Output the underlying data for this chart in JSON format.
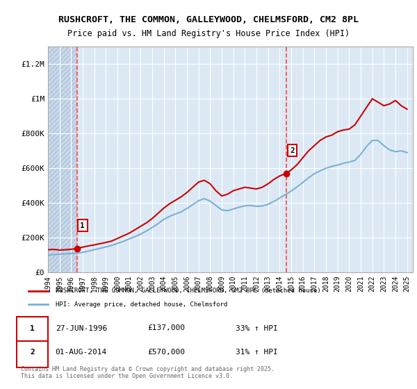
{
  "title_line1": "RUSHCROFT, THE COMMON, GALLEYWOOD, CHELMSFORD, CM2 8PL",
  "title_line2": "Price paid vs. HM Land Registry's House Price Index (HPI)",
  "bg_color": "#dce9f5",
  "plot_bg_color": "#dce9f5",
  "hatch_color": "#c0d0e8",
  "grid_color": "#ffffff",
  "red_line_color": "#cc0000",
  "blue_line_color": "#7ab0d4",
  "dashed_red_color": "#ff4444",
  "x_start": 1994.0,
  "x_end": 2025.5,
  "y_min": 0,
  "y_max": 1300000,
  "yticks": [
    0,
    200000,
    400000,
    600000,
    800000,
    1000000,
    1200000
  ],
  "ytick_labels": [
    "£0",
    "£200K",
    "£400K",
    "£600K",
    "£800K",
    "£1M",
    "£1.2M"
  ],
  "xticks": [
    1994,
    1995,
    1996,
    1997,
    1998,
    1999,
    2000,
    2001,
    2002,
    2003,
    2004,
    2005,
    2006,
    2007,
    2008,
    2009,
    2010,
    2011,
    2012,
    2013,
    2014,
    2015,
    2016,
    2017,
    2018,
    2019,
    2020,
    2021,
    2022,
    2023,
    2024,
    2025
  ],
  "sale1_x": 1996.49,
  "sale1_y": 137000,
  "sale2_x": 2014.58,
  "sale2_y": 570000,
  "vline1_x": 1996.49,
  "vline2_x": 2014.58,
  "legend_label_red": "RUSHCROFT, THE COMMON, GALLEYWOOD, CHELMSFORD, CM2 8PL (detached house)",
  "legend_label_blue": "HPI: Average price, detached house, Chelmsford",
  "annotation1_label": "1",
  "annotation2_label": "2",
  "note1_num": "1",
  "note1_date": "27-JUN-1996",
  "note1_price": "£137,000",
  "note1_hpi": "33% ↑ HPI",
  "note2_num": "2",
  "note2_date": "01-AUG-2014",
  "note2_price": "£570,000",
  "note2_hpi": "31% ↑ HPI",
  "copyright": "Contains HM Land Registry data © Crown copyright and database right 2025.\nThis data is licensed under the Open Government Licence v3.0.",
  "red_line_x": [
    1994.0,
    1994.5,
    1995.0,
    1995.5,
    1996.0,
    1996.49,
    1996.5,
    1997.0,
    1997.5,
    1998.0,
    1998.5,
    1999.0,
    1999.5,
    2000.0,
    2000.5,
    2001.0,
    2001.5,
    2002.0,
    2002.5,
    2003.0,
    2003.5,
    2004.0,
    2004.5,
    2005.0,
    2005.5,
    2006.0,
    2006.5,
    2007.0,
    2007.5,
    2008.0,
    2008.5,
    2009.0,
    2009.5,
    2010.0,
    2010.5,
    2011.0,
    2011.5,
    2012.0,
    2012.5,
    2013.0,
    2013.5,
    2014.0,
    2014.58,
    2015.0,
    2015.5,
    2016.0,
    2016.5,
    2017.0,
    2017.5,
    2018.0,
    2018.5,
    2019.0,
    2019.5,
    2020.0,
    2020.5,
    2021.0,
    2021.5,
    2022.0,
    2022.5,
    2023.0,
    2023.5,
    2024.0,
    2024.5,
    2025.0
  ],
  "red_line_y": [
    130000,
    132000,
    128000,
    130000,
    133000,
    137000,
    138000,
    145000,
    152000,
    158000,
    165000,
    172000,
    180000,
    195000,
    210000,
    225000,
    245000,
    265000,
    285000,
    310000,
    340000,
    370000,
    395000,
    415000,
    435000,
    460000,
    490000,
    520000,
    530000,
    510000,
    470000,
    440000,
    450000,
    470000,
    480000,
    490000,
    485000,
    480000,
    490000,
    510000,
    535000,
    555000,
    570000,
    590000,
    620000,
    660000,
    700000,
    730000,
    760000,
    780000,
    790000,
    810000,
    820000,
    825000,
    850000,
    900000,
    950000,
    1000000,
    980000,
    960000,
    970000,
    990000,
    960000,
    940000
  ],
  "blue_line_x": [
    1994.0,
    1994.5,
    1995.0,
    1995.5,
    1996.0,
    1996.5,
    1997.0,
    1997.5,
    1998.0,
    1998.5,
    1999.0,
    1999.5,
    2000.0,
    2000.5,
    2001.0,
    2001.5,
    2002.0,
    2002.5,
    2003.0,
    2003.5,
    2004.0,
    2004.5,
    2005.0,
    2005.5,
    2006.0,
    2006.5,
    2007.0,
    2007.5,
    2008.0,
    2008.5,
    2009.0,
    2009.5,
    2010.0,
    2010.5,
    2011.0,
    2011.5,
    2012.0,
    2012.5,
    2013.0,
    2013.5,
    2014.0,
    2014.5,
    2015.0,
    2015.5,
    2016.0,
    2016.5,
    2017.0,
    2017.5,
    2018.0,
    2018.5,
    2019.0,
    2019.5,
    2020.0,
    2020.5,
    2021.0,
    2021.5,
    2022.0,
    2022.5,
    2023.0,
    2023.5,
    2024.0,
    2024.5,
    2025.0
  ],
  "blue_line_y": [
    100000,
    102000,
    104000,
    106000,
    108000,
    111000,
    115000,
    122000,
    130000,
    138000,
    146000,
    155000,
    166000,
    178000,
    192000,
    205000,
    220000,
    238000,
    258000,
    280000,
    305000,
    322000,
    336000,
    348000,
    368000,
    390000,
    412000,
    425000,
    410000,
    385000,
    360000,
    355000,
    365000,
    375000,
    383000,
    385000,
    380000,
    382000,
    392000,
    408000,
    428000,
    448000,
    468000,
    492000,
    518000,
    545000,
    568000,
    585000,
    600000,
    610000,
    618000,
    628000,
    635000,
    645000,
    680000,
    725000,
    760000,
    760000,
    730000,
    705000,
    695000,
    700000,
    690000
  ]
}
